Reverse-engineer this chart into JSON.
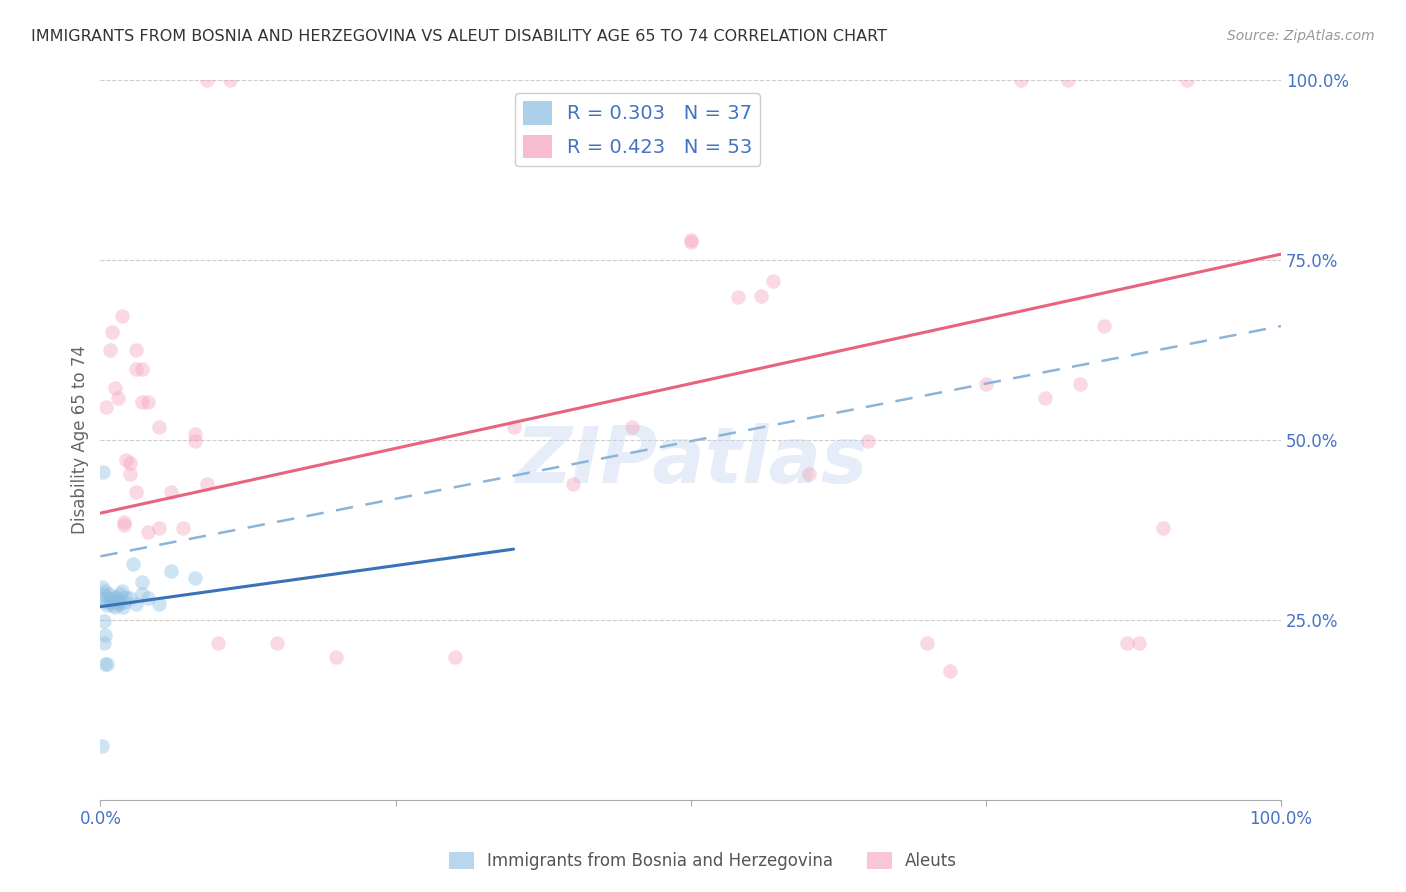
{
  "title": "IMMIGRANTS FROM BOSNIA AND HERZEGOVINA VS ALEUT DISABILITY AGE 65 TO 74 CORRELATION CHART",
  "source": "Source: ZipAtlas.com",
  "ylabel": "Disability Age 65 to 74",
  "xmin": 0.0,
  "xmax": 1.0,
  "ymin": 0.0,
  "ymax": 1.0,
  "legend_label1": "R = 0.303   N = 37",
  "legend_label2": "R = 0.423   N = 53",
  "watermark": "ZIPatlas",
  "blue_scatter": [
    [
      0.001,
      0.295
    ],
    [
      0.002,
      0.285
    ],
    [
      0.003,
      0.28
    ],
    [
      0.004,
      0.29
    ],
    [
      0.005,
      0.275
    ],
    [
      0.006,
      0.27
    ],
    [
      0.007,
      0.285
    ],
    [
      0.008,
      0.28
    ],
    [
      0.009,
      0.275
    ],
    [
      0.01,
      0.278
    ],
    [
      0.011,
      0.27
    ],
    [
      0.012,
      0.268
    ],
    [
      0.013,
      0.282
    ],
    [
      0.014,
      0.278
    ],
    [
      0.015,
      0.275
    ],
    [
      0.016,
      0.272
    ],
    [
      0.017,
      0.285
    ],
    [
      0.018,
      0.29
    ],
    [
      0.019,
      0.268
    ],
    [
      0.02,
      0.275
    ],
    [
      0.021,
      0.282
    ],
    [
      0.025,
      0.28
    ],
    [
      0.03,
      0.272
    ],
    [
      0.035,
      0.285
    ],
    [
      0.04,
      0.28
    ],
    [
      0.05,
      0.272
    ],
    [
      0.002,
      0.455
    ],
    [
      0.035,
      0.302
    ],
    [
      0.06,
      0.318
    ],
    [
      0.001,
      0.075
    ],
    [
      0.08,
      0.308
    ],
    [
      0.003,
      0.218
    ],
    [
      0.003,
      0.248
    ],
    [
      0.004,
      0.228
    ],
    [
      0.004,
      0.188
    ],
    [
      0.006,
      0.188
    ],
    [
      0.028,
      0.328
    ]
  ],
  "pink_scatter": [
    [
      0.005,
      0.545
    ],
    [
      0.008,
      0.625
    ],
    [
      0.01,
      0.65
    ],
    [
      0.012,
      0.572
    ],
    [
      0.015,
      0.558
    ],
    [
      0.018,
      0.672
    ],
    [
      0.02,
      0.385
    ],
    [
      0.02,
      0.382
    ],
    [
      0.022,
      0.472
    ],
    [
      0.025,
      0.452
    ],
    [
      0.025,
      0.468
    ],
    [
      0.03,
      0.428
    ],
    [
      0.03,
      0.625
    ],
    [
      0.03,
      0.598
    ],
    [
      0.035,
      0.598
    ],
    [
      0.035,
      0.552
    ],
    [
      0.04,
      0.372
    ],
    [
      0.04,
      0.552
    ],
    [
      0.05,
      0.378
    ],
    [
      0.05,
      0.518
    ],
    [
      0.06,
      0.428
    ],
    [
      0.07,
      0.378
    ],
    [
      0.08,
      0.508
    ],
    [
      0.08,
      0.498
    ],
    [
      0.09,
      0.438
    ],
    [
      0.1,
      0.218
    ],
    [
      0.15,
      0.218
    ],
    [
      0.2,
      0.198
    ],
    [
      0.3,
      0.198
    ],
    [
      0.35,
      0.518
    ],
    [
      0.4,
      0.438
    ],
    [
      0.45,
      0.518
    ],
    [
      0.5,
      0.775
    ],
    [
      0.5,
      0.778
    ],
    [
      0.54,
      0.698
    ],
    [
      0.56,
      0.7
    ],
    [
      0.57,
      0.72
    ],
    [
      0.6,
      0.452
    ],
    [
      0.65,
      0.498
    ],
    [
      0.7,
      0.218
    ],
    [
      0.72,
      0.178
    ],
    [
      0.75,
      0.578
    ],
    [
      0.8,
      0.558
    ],
    [
      0.83,
      0.578
    ],
    [
      0.85,
      0.658
    ],
    [
      0.87,
      0.218
    ],
    [
      0.88,
      0.218
    ],
    [
      0.9,
      0.378
    ],
    [
      0.09,
      1.0
    ],
    [
      0.11,
      1.0
    ],
    [
      0.78,
      1.0
    ],
    [
      0.82,
      1.0
    ],
    [
      0.92,
      1.0
    ]
  ],
  "blue_solid_line_x": [
    0.0,
    0.35
  ],
  "blue_solid_line_y": [
    0.268,
    0.348
  ],
  "blue_dashed_line_x": [
    0.0,
    1.0
  ],
  "blue_dashed_line_y": [
    0.338,
    0.658
  ],
  "pink_line_x": [
    0.0,
    1.0
  ],
  "pink_line_y": [
    0.398,
    0.758
  ],
  "bg_color": "#ffffff",
  "scatter_size": 110,
  "scatter_alpha": 0.4,
  "grid_color": "#cccccc",
  "title_color": "#333333",
  "tick_label_color": "#4472c4"
}
